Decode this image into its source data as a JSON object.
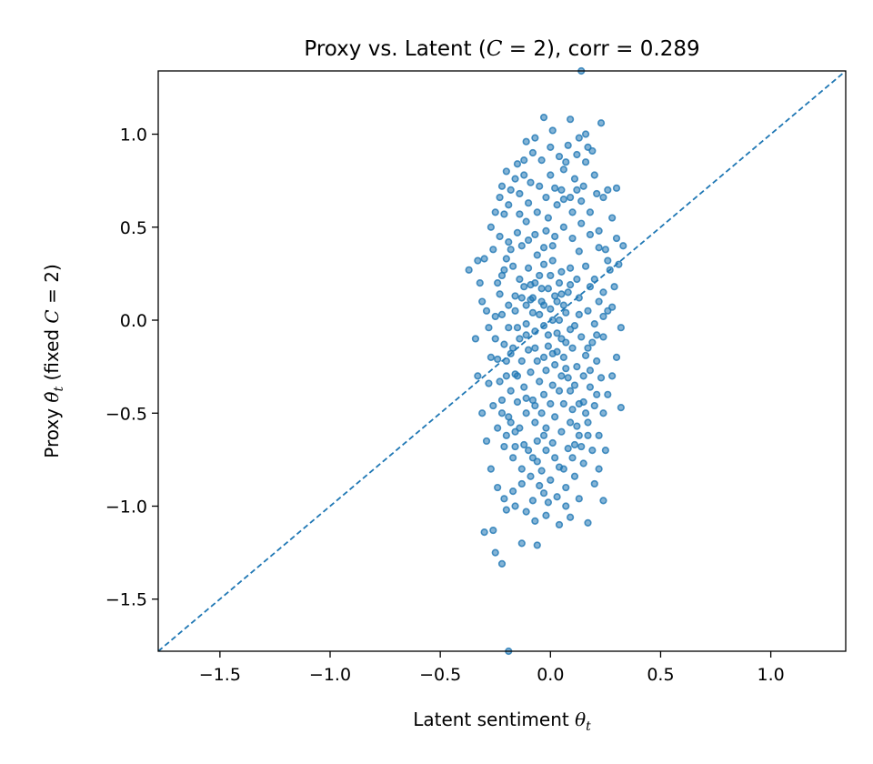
{
  "chart_data": {
    "type": "scatter",
    "title": {
      "prefix": "Proxy vs. Latent (",
      "var": "C",
      "eq": " = 2",
      "suffix": "), corr = 0.289"
    },
    "xlabel": {
      "text": "Latent sentiment ",
      "var": "θ",
      "sub": "t"
    },
    "ylabel": {
      "prefix": "Proxy ",
      "var": "θ̂",
      "sub": "t",
      "mid": " (fixed ",
      "cvar": "C",
      "eq": " = 2)"
    },
    "xlim": [
      -1.78,
      1.34
    ],
    "ylim": [
      -1.78,
      1.34
    ],
    "x_ticks": [
      -1.5,
      -1.0,
      -0.5,
      0.0,
      0.5,
      1.0
    ],
    "x_tick_labels": [
      "−1.5",
      "−1.0",
      "−0.5",
      "0.0",
      "0.5",
      "1.0"
    ],
    "y_ticks": [
      -1.5,
      -1.0,
      -0.5,
      0.0,
      0.5,
      1.0
    ],
    "y_tick_labels": [
      "−1.5",
      "−1.0",
      "−0.5",
      "0.0",
      "0.5",
      "1.0"
    ],
    "reference_line": {
      "style": "dashed",
      "slope": 1,
      "intercept": 0
    },
    "grid": false,
    "marker_color": "#1f77b4",
    "points": [
      [
        0.14,
        1.34
      ],
      [
        -0.19,
        -1.78
      ],
      [
        0.19,
        0.91
      ],
      [
        -0.22,
        -1.31
      ],
      [
        -0.25,
        -1.25
      ],
      [
        -0.3,
        -1.14
      ],
      [
        -0.26,
        -1.13
      ],
      [
        -0.13,
        -1.2
      ],
      [
        -0.06,
        -1.21
      ],
      [
        0.07,
        -1.0
      ],
      [
        -0.03,
        1.09
      ],
      [
        0.09,
        1.08
      ],
      [
        0.16,
        1.0
      ],
      [
        0.23,
        1.06
      ],
      [
        0.01,
        1.02
      ],
      [
        -0.2,
        0.8
      ],
      [
        -0.23,
        0.66
      ],
      [
        0.3,
        0.71
      ],
      [
        -0.37,
        0.27
      ],
      [
        -0.33,
        0.32
      ],
      [
        0.33,
        0.4
      ],
      [
        0.32,
        -0.04
      ],
      [
        0.32,
        -0.47
      ],
      [
        0.24,
        -0.97
      ],
      [
        0.17,
        -1.09
      ],
      [
        -0.03,
        -0.93
      ],
      [
        -0.08,
        -0.97
      ],
      [
        0.11,
        -0.67
      ],
      [
        -0.31,
        0.1
      ],
      [
        -0.28,
        -0.04
      ],
      [
        -0.24,
        0.2
      ],
      [
        -0.21,
        0.57
      ],
      [
        -0.16,
        0.76
      ],
      [
        -0.12,
        0.86
      ],
      [
        -0.09,
        0.74
      ],
      [
        -0.05,
        0.72
      ],
      [
        -0.01,
        0.55
      ],
      [
        0.03,
        0.62
      ],
      [
        0.06,
        0.81
      ],
      [
        0.11,
        0.76
      ],
      [
        0.14,
        0.64
      ],
      [
        0.18,
        0.58
      ],
      [
        0.22,
        0.48
      ],
      [
        0.25,
        0.38
      ],
      [
        0.27,
        0.27
      ],
      [
        0.29,
        0.18
      ],
      [
        0.28,
        0.07
      ],
      [
        0.24,
        -0.09
      ],
      [
        0.21,
        -0.22
      ],
      [
        0.18,
        -0.36
      ],
      [
        0.15,
        -0.44
      ],
      [
        0.12,
        -0.57
      ],
      [
        0.08,
        -0.69
      ],
      [
        0.04,
        -0.79
      ],
      [
        0.0,
        -0.86
      ],
      [
        -0.04,
        -0.81
      ],
      [
        -0.08,
        -0.74
      ],
      [
        -0.12,
        -0.67
      ],
      [
        -0.16,
        -0.6
      ],
      [
        -0.19,
        -0.52
      ],
      [
        -0.22,
        -0.43
      ],
      [
        -0.23,
        -0.33
      ],
      [
        -0.24,
        -0.21
      ],
      [
        -0.25,
        -0.1
      ],
      [
        -0.25,
        0.02
      ],
      [
        -0.23,
        0.14
      ],
      [
        -0.21,
        0.27
      ],
      [
        -0.18,
        0.38
      ],
      [
        -0.15,
        0.47
      ],
      [
        -0.11,
        0.53
      ],
      [
        -0.07,
        0.46
      ],
      [
        -0.03,
        0.39
      ],
      [
        0.01,
        0.32
      ],
      [
        0.05,
        0.26
      ],
      [
        0.09,
        0.19
      ],
      [
        0.13,
        0.12
      ],
      [
        0.17,
        0.05
      ],
      [
        0.2,
        -0.02
      ],
      [
        0.19,
        -0.12
      ],
      [
        0.16,
        -0.19
      ],
      [
        0.12,
        -0.25
      ],
      [
        0.08,
        -0.31
      ],
      [
        0.04,
        -0.38
      ],
      [
        0.0,
        -0.45
      ],
      [
        -0.04,
        -0.5
      ],
      [
        -0.08,
        -0.43
      ],
      [
        -0.12,
        -0.36
      ],
      [
        -0.16,
        -0.29
      ],
      [
        -0.2,
        -0.22
      ],
      [
        -0.21,
        -0.13
      ],
      [
        -0.19,
        -0.04
      ],
      [
        -0.16,
        0.05
      ],
      [
        -0.13,
        0.12
      ],
      [
        -0.09,
        0.19
      ],
      [
        -0.05,
        0.24
      ],
      [
        -0.01,
        0.17
      ],
      [
        0.03,
        0.1
      ],
      [
        0.07,
        0.04
      ],
      [
        0.11,
        -0.03
      ],
      [
        0.14,
        -0.09
      ],
      [
        0.1,
        -0.15
      ],
      [
        0.06,
        -0.2
      ],
      [
        0.02,
        -0.24
      ],
      [
        -0.02,
        -0.27
      ],
      [
        -0.06,
        -0.22
      ],
      [
        -0.1,
        -0.16
      ],
      [
        -0.14,
        -0.1
      ],
      [
        -0.17,
        -0.15
      ],
      [
        -0.13,
        -0.22
      ],
      [
        -0.09,
        -0.28
      ],
      [
        -0.05,
        -0.33
      ],
      [
        -0.01,
        -0.14
      ],
      [
        0.03,
        -0.07
      ],
      [
        0.07,
        -0.12
      ],
      [
        0.04,
        0.0
      ],
      [
        0.0,
        0.06
      ],
      [
        -0.04,
        0.1
      ],
      [
        -0.08,
        0.04
      ],
      [
        -0.11,
        -0.02
      ],
      [
        -0.07,
        -0.06
      ],
      [
        -0.03,
        -0.03
      ],
      [
        0.01,
        0.0
      ],
      [
        0.05,
        0.14
      ],
      [
        0.09,
        0.28
      ],
      [
        0.13,
        0.37
      ],
      [
        0.16,
        0.29
      ],
      [
        0.2,
        0.22
      ],
      [
        0.24,
        0.15
      ],
      [
        0.26,
        0.05
      ],
      [
        0.23,
        -0.31
      ],
      [
        0.2,
        -0.46
      ],
      [
        0.17,
        -0.55
      ],
      [
        0.13,
        -0.62
      ],
      [
        0.09,
        -0.55
      ],
      [
        0.05,
        -0.6
      ],
      [
        0.01,
        -0.66
      ],
      [
        -0.03,
        -0.62
      ],
      [
        -0.07,
        -0.55
      ],
      [
        -0.11,
        -0.5
      ],
      [
        -0.15,
        -0.44
      ],
      [
        -0.18,
        -0.38
      ],
      [
        -0.2,
        -0.3
      ],
      [
        -0.27,
        -0.2
      ],
      [
        -0.29,
        0.05
      ],
      [
        -0.26,
        0.38
      ],
      [
        -0.23,
        0.45
      ],
      [
        -0.19,
        0.62
      ],
      [
        -0.14,
        0.68
      ],
      [
        -0.1,
        0.63
      ],
      [
        -0.06,
        0.58
      ],
      [
        -0.02,
        0.66
      ],
      [
        0.02,
        0.71
      ],
      [
        0.06,
        0.65
      ],
      [
        0.1,
        0.58
      ],
      [
        0.14,
        0.52
      ],
      [
        0.18,
        0.46
      ],
      [
        0.22,
        0.39
      ],
      [
        0.26,
        0.32
      ],
      [
        0.1,
        0.44
      ],
      [
        0.06,
        0.5
      ],
      [
        0.02,
        0.45
      ],
      [
        -0.02,
        0.48
      ],
      [
        -0.06,
        0.35
      ],
      [
        -0.1,
        0.28
      ],
      [
        -0.14,
        0.22
      ],
      [
        -0.17,
        0.29
      ],
      [
        -0.13,
        0.4
      ],
      [
        -0.09,
        0.11
      ],
      [
        -0.05,
        0.03
      ],
      [
        -0.01,
        -0.08
      ],
      [
        0.03,
        -0.17
      ],
      [
        0.07,
        -0.26
      ],
      [
        0.11,
        -0.35
      ],
      [
        0.15,
        -0.3
      ],
      [
        0.18,
        -0.27
      ],
      [
        0.21,
        -0.4
      ],
      [
        0.24,
        -0.5
      ],
      [
        0.22,
        -0.62
      ],
      [
        0.19,
        -0.7
      ],
      [
        0.15,
        -0.77
      ],
      [
        0.11,
        -0.84
      ],
      [
        0.07,
        -0.9
      ],
      [
        0.03,
        -0.95
      ],
      [
        -0.01,
        -0.98
      ],
      [
        -0.05,
        -0.89
      ],
      [
        -0.09,
        -0.84
      ],
      [
        -0.13,
        -0.8
      ],
      [
        -0.17,
        -0.74
      ],
      [
        -0.21,
        -0.68
      ],
      [
        -0.24,
        -0.58
      ],
      [
        -0.26,
        -0.46
      ],
      [
        -0.28,
        -0.34
      ],
      [
        -0.24,
        -0.9
      ],
      [
        -0.21,
        -0.96
      ],
      [
        -0.17,
        -0.92
      ],
      [
        -0.13,
        -0.88
      ],
      [
        -0.1,
        -0.7
      ],
      [
        -0.06,
        -0.76
      ],
      [
        -0.02,
        -0.7
      ],
      [
        0.02,
        -0.74
      ],
      [
        0.06,
        -0.8
      ],
      [
        0.1,
        -0.74
      ],
      [
        0.14,
        -0.68
      ],
      [
        0.17,
        -0.62
      ],
      [
        0.04,
        0.88
      ],
      [
        0.0,
        0.93
      ],
      [
        -0.04,
        0.86
      ],
      [
        -0.08,
        0.9
      ],
      [
        -0.12,
        0.78
      ],
      [
        -0.15,
        0.84
      ],
      [
        0.08,
        0.94
      ],
      [
        0.12,
        0.89
      ],
      [
        0.16,
        0.85
      ],
      [
        0.2,
        0.78
      ],
      [
        0.24,
        0.66
      ],
      [
        0.28,
        0.55
      ],
      [
        0.3,
        0.44
      ],
      [
        0.31,
        0.3
      ],
      [
        0.3,
        -0.2
      ],
      [
        0.28,
        -0.3
      ],
      [
        0.26,
        -0.4
      ],
      [
        0.25,
        -0.7
      ],
      [
        0.22,
        -0.8
      ],
      [
        0.2,
        -0.88
      ],
      [
        0.13,
        -0.96
      ],
      [
        0.09,
        -1.06
      ],
      [
        0.04,
        -1.1
      ],
      [
        -0.02,
        -1.05
      ],
      [
        -0.07,
        -1.08
      ],
      [
        -0.11,
        -1.03
      ],
      [
        -0.16,
        -1.0
      ],
      [
        -0.2,
        -1.02
      ],
      [
        -0.27,
        -0.8
      ],
      [
        -0.29,
        -0.65
      ],
      [
        -0.31,
        -0.5
      ],
      [
        -0.33,
        -0.3
      ],
      [
        -0.34,
        -0.1
      ],
      [
        -0.32,
        0.2
      ],
      [
        -0.3,
        0.33
      ],
      [
        -0.27,
        0.5
      ],
      [
        -0.25,
        0.58
      ],
      [
        -0.22,
        0.72
      ],
      [
        -0.18,
        0.7
      ],
      [
        -0.11,
        0.96
      ],
      [
        -0.07,
        0.98
      ],
      [
        0.0,
        0.78
      ],
      [
        0.05,
        0.7
      ],
      [
        0.09,
        0.66
      ],
      [
        0.12,
        0.7
      ],
      [
        0.15,
        0.72
      ],
      [
        0.01,
        0.4
      ],
      [
        -0.03,
        0.3
      ],
      [
        -0.07,
        0.2
      ],
      [
        -0.11,
        0.08
      ],
      [
        -0.15,
        -0.04
      ],
      [
        -0.18,
        -0.18
      ],
      [
        -0.15,
        -0.3
      ],
      [
        -0.11,
        -0.42
      ],
      [
        -0.07,
        -0.46
      ],
      [
        -0.03,
        -0.4
      ],
      [
        0.01,
        -0.35
      ],
      [
        0.05,
        -0.3
      ],
      [
        0.09,
        -0.38
      ],
      [
        0.13,
        -0.45
      ],
      [
        0.16,
        -0.5
      ],
      [
        0.12,
        0.22
      ],
      [
        0.08,
        0.15
      ],
      [
        0.04,
        0.2
      ],
      [
        0.0,
        0.24
      ],
      [
        -0.04,
        0.17
      ],
      [
        -0.08,
        0.12
      ],
      [
        -0.12,
        0.18
      ],
      [
        -0.16,
        0.13
      ],
      [
        -0.19,
        0.08
      ],
      [
        -0.22,
        0.03
      ],
      [
        0.18,
        0.18
      ],
      [
        0.22,
        0.1
      ],
      [
        0.24,
        0.02
      ],
      [
        0.21,
        -0.08
      ],
      [
        0.17,
        -0.15
      ],
      [
        0.13,
        0.03
      ],
      [
        0.09,
        -0.05
      ],
      [
        0.05,
        -0.1
      ],
      [
        0.01,
        -0.18
      ],
      [
        -0.03,
        -0.2
      ],
      [
        -0.07,
        -0.15
      ],
      [
        -0.11,
        -0.08
      ],
      [
        -0.03,
        0.08
      ],
      [
        0.02,
        0.13
      ],
      [
        0.06,
        0.08
      ],
      [
        -0.02,
        -0.58
      ],
      [
        0.02,
        -0.52
      ],
      [
        0.06,
        -0.45
      ],
      [
        0.1,
        -0.48
      ],
      [
        -0.06,
        -0.65
      ],
      [
        -0.14,
        -0.58
      ],
      [
        -0.18,
        -0.55
      ],
      [
        -0.22,
        -0.5
      ],
      [
        -0.2,
        -0.62
      ],
      [
        -0.16,
        -0.68
      ],
      [
        0.26,
        0.7
      ],
      [
        0.21,
        0.68
      ],
      [
        0.17,
        0.93
      ],
      [
        0.13,
        0.98
      ],
      [
        0.07,
        0.85
      ],
      [
        -0.19,
        0.42
      ],
      [
        -0.2,
        0.33
      ],
      [
        -0.22,
        0.24
      ],
      [
        -0.14,
        0.57
      ],
      [
        -0.1,
        0.43
      ]
    ]
  }
}
